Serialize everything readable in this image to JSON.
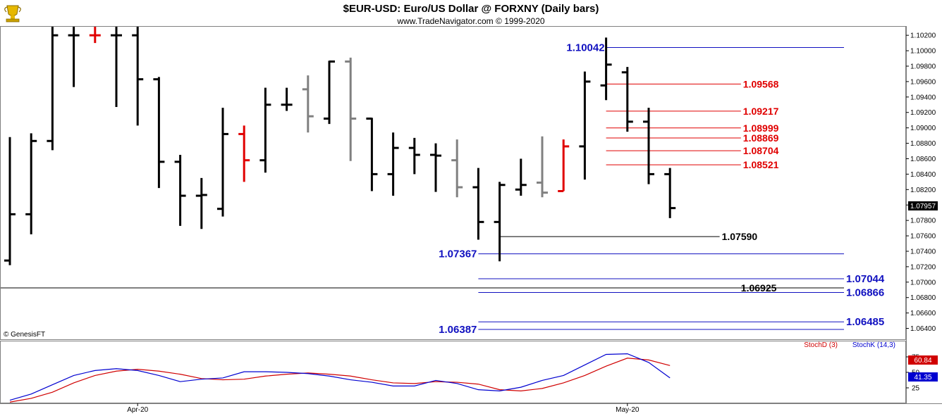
{
  "header": {
    "title": "$EUR-USD:  Euro/US Dollar @ FORXNY  (Daily bars)",
    "subtitle": "www.TradeNavigator.com © 1999-2020",
    "logo_icon": "trophy-logo-icon",
    "copyright": "© GenesisFT"
  },
  "colors": {
    "up_bar": "#000000",
    "down_bar": "#000000",
    "red_bar": "#e00000",
    "gray_bar": "#808080",
    "blue_level": "#1010c0",
    "red_level": "#e00000",
    "stoch_d": "#d00000",
    "stoch_k": "#0000d0"
  },
  "chart_data": [
    {
      "type": "ohlc",
      "title": "$EUR-USD:  Euro/US Dollar @ FORXNY  (Daily bars)",
      "ylim": [
        1.0625,
        1.1032
      ],
      "y_ticks": [
        "1.10200",
        "1.10000",
        "1.09800",
        "1.09600",
        "1.09400",
        "1.09200",
        "1.09000",
        "1.08800",
        "1.08600",
        "1.08400",
        "1.08200",
        "1.08000",
        "1.07800",
        "1.07600",
        "1.07400",
        "1.07200",
        "1.07000",
        "1.06800",
        "1.06600",
        "1.06400"
      ],
      "x_labels": [
        {
          "bar": 6,
          "label": "Apr-20"
        },
        {
          "bar": 29,
          "label": "May-20"
        }
      ],
      "last_price": "1.07957",
      "bars": [
        {
          "o": 1.0728,
          "h": 1.0888,
          "l": 1.0722,
          "c": 1.0788,
          "color": "black"
        },
        {
          "o": 1.0788,
          "h": 1.0893,
          "l": 1.0762,
          "c": 1.0883,
          "color": "black"
        },
        {
          "o": 1.0883,
          "h": 1.106,
          "l": 1.0871,
          "c": 1.102,
          "color": "black"
        },
        {
          "o": 1.102,
          "h": 1.106,
          "l": 1.0953,
          "c": 1.102,
          "color": "black"
        },
        {
          "o": 1.102,
          "h": 1.1045,
          "l": 1.101,
          "c": 1.102,
          "color": "red"
        },
        {
          "o": 1.102,
          "h": 1.106,
          "l": 1.0927,
          "c": 1.102,
          "color": "black"
        },
        {
          "o": 1.102,
          "h": 1.106,
          "l": 1.0903,
          "c": 1.0963,
          "color": "black"
        },
        {
          "o": 1.0963,
          "h": 1.0966,
          "l": 1.0822,
          "c": 1.0856,
          "color": "black"
        },
        {
          "o": 1.0856,
          "h": 1.0865,
          "l": 1.0773,
          "c": 1.0812,
          "color": "black"
        },
        {
          "o": 1.0812,
          "h": 1.0835,
          "l": 1.0769,
          "c": 1.0813,
          "color": "black"
        },
        {
          "o": 1.0795,
          "h": 1.0926,
          "l": 1.0785,
          "c": 1.0892,
          "color": "black"
        },
        {
          "o": 1.0892,
          "h": 1.0903,
          "l": 1.083,
          "c": 1.0858,
          "color": "red"
        },
        {
          "o": 1.0858,
          "h": 1.0952,
          "l": 1.0842,
          "c": 1.093,
          "color": "black"
        },
        {
          "o": 1.093,
          "h": 1.0952,
          "l": 1.0922,
          "c": 1.093,
          "color": "black"
        },
        {
          "o": 1.095,
          "h": 1.0968,
          "l": 1.0894,
          "c": 1.0915,
          "color": "gray"
        },
        {
          "o": 1.0912,
          "h": 1.0987,
          "l": 1.0905,
          "c": 1.0986,
          "color": "black"
        },
        {
          "o": 1.0986,
          "h": 1.0991,
          "l": 1.0857,
          "c": 1.0912,
          "color": "gray"
        },
        {
          "o": 1.0912,
          "h": 1.0913,
          "l": 1.0818,
          "c": 1.084,
          "color": "black"
        },
        {
          "o": 1.084,
          "h": 1.0894,
          "l": 1.0812,
          "c": 1.0874,
          "color": "black"
        },
        {
          "o": 1.0874,
          "h": 1.0887,
          "l": 1.084,
          "c": 1.0865,
          "color": "black"
        },
        {
          "o": 1.0865,
          "h": 1.088,
          "l": 1.0817,
          "c": 1.0864,
          "color": "black"
        },
        {
          "o": 1.0858,
          "h": 1.0885,
          "l": 1.081,
          "c": 1.0823,
          "color": "gray"
        },
        {
          "o": 1.0823,
          "h": 1.0848,
          "l": 1.0755,
          "c": 1.0778,
          "color": "black"
        },
        {
          "o": 1.0778,
          "h": 1.083,
          "l": 1.0727,
          "c": 1.0826,
          "color": "black"
        },
        {
          "o": 1.082,
          "h": 1.086,
          "l": 1.0812,
          "c": 1.0826,
          "color": "black"
        },
        {
          "o": 1.0829,
          "h": 1.0889,
          "l": 1.081,
          "c": 1.0816,
          "color": "gray"
        },
        {
          "o": 1.0818,
          "h": 1.0885,
          "l": 1.0818,
          "c": 1.0876,
          "color": "red"
        },
        {
          "o": 1.0876,
          "h": 1.0973,
          "l": 1.0833,
          "c": 1.096,
          "color": "black"
        },
        {
          "o": 1.0955,
          "h": 1.1017,
          "l": 1.0936,
          "c": 1.0982,
          "color": "black"
        },
        {
          "o": 1.0972,
          "h": 1.0979,
          "l": 1.0895,
          "c": 1.0908,
          "color": "black"
        },
        {
          "o": 1.0908,
          "h": 1.0926,
          "l": 1.0827,
          "c": 1.084,
          "color": "black"
        },
        {
          "o": 1.084,
          "h": 1.0848,
          "l": 1.0783,
          "c": 1.0796,
          "color": "black"
        }
      ],
      "levels": [
        {
          "value": "1.10042",
          "color": "blue",
          "label_side": "left",
          "bar_from": 28,
          "to_edge": true
        },
        {
          "value": "1.09568",
          "color": "red",
          "label_side": "right",
          "bar_from": 28,
          "bar_to": 34
        },
        {
          "value": "1.09217",
          "color": "red",
          "label_side": "right",
          "bar_from": 28,
          "bar_to": 34
        },
        {
          "value": "1.08999",
          "color": "red",
          "label_side": "right",
          "bar_from": 28,
          "bar_to": 34
        },
        {
          "value": "1.08869",
          "color": "red",
          "label_side": "right",
          "bar_from": 28,
          "bar_to": 34
        },
        {
          "value": "1.08704",
          "color": "red",
          "label_side": "right",
          "bar_from": 28,
          "bar_to": 34
        },
        {
          "value": "1.08521",
          "color": "red",
          "label_side": "right",
          "bar_from": 28,
          "bar_to": 34
        },
        {
          "value": "1.07590",
          "color": "black",
          "label_side": "right",
          "bar_from": 23,
          "bar_to": 33
        },
        {
          "value": "1.07367",
          "color": "blue",
          "label_side": "left",
          "bar_from": 22,
          "to_edge": true
        },
        {
          "value": "1.07044",
          "color": "blue",
          "label_side": "right",
          "bar_from": 22,
          "to_edge": true
        },
        {
          "value": "1.06925",
          "color": "black",
          "label_side": "right",
          "full_width": true
        },
        {
          "value": "1.06866",
          "color": "blue",
          "label_side": "right",
          "bar_from": 22,
          "to_edge": true
        },
        {
          "value": "1.06485",
          "color": "blue",
          "label_side": "right",
          "bar_from": 22,
          "to_edge": true
        },
        {
          "value": "1.06387",
          "color": "blue",
          "label_side": "left",
          "bar_from": 22,
          "to_edge": true
        }
      ]
    },
    {
      "type": "line",
      "legend": [
        "StochD (3)",
        "StochK (14,3)"
      ],
      "ylim": [
        0,
        100
      ],
      "y_ticks": [
        "75",
        "50",
        "25"
      ],
      "last_values": {
        "stoch_d": "60.84",
        "stoch_k": "41.35"
      },
      "series": [
        {
          "name": "StochD (3)",
          "values": [
            2,
            8,
            18,
            33,
            45,
            52,
            55,
            52,
            47,
            40,
            38,
            39,
            44,
            47,
            49,
            47,
            44,
            38,
            33,
            32,
            35,
            34,
            31,
            22,
            20,
            24,
            33,
            45,
            60,
            73,
            70,
            61
          ]
        },
        {
          "name": "StochK (14,3)",
          "values": [
            5,
            15,
            30,
            45,
            53,
            56,
            53,
            45,
            35,
            39,
            41,
            51,
            51,
            50,
            48,
            44,
            38,
            34,
            28,
            28,
            37,
            32,
            22,
            20,
            26,
            37,
            45,
            62,
            79,
            80,
            66,
            41
          ]
        }
      ]
    }
  ]
}
